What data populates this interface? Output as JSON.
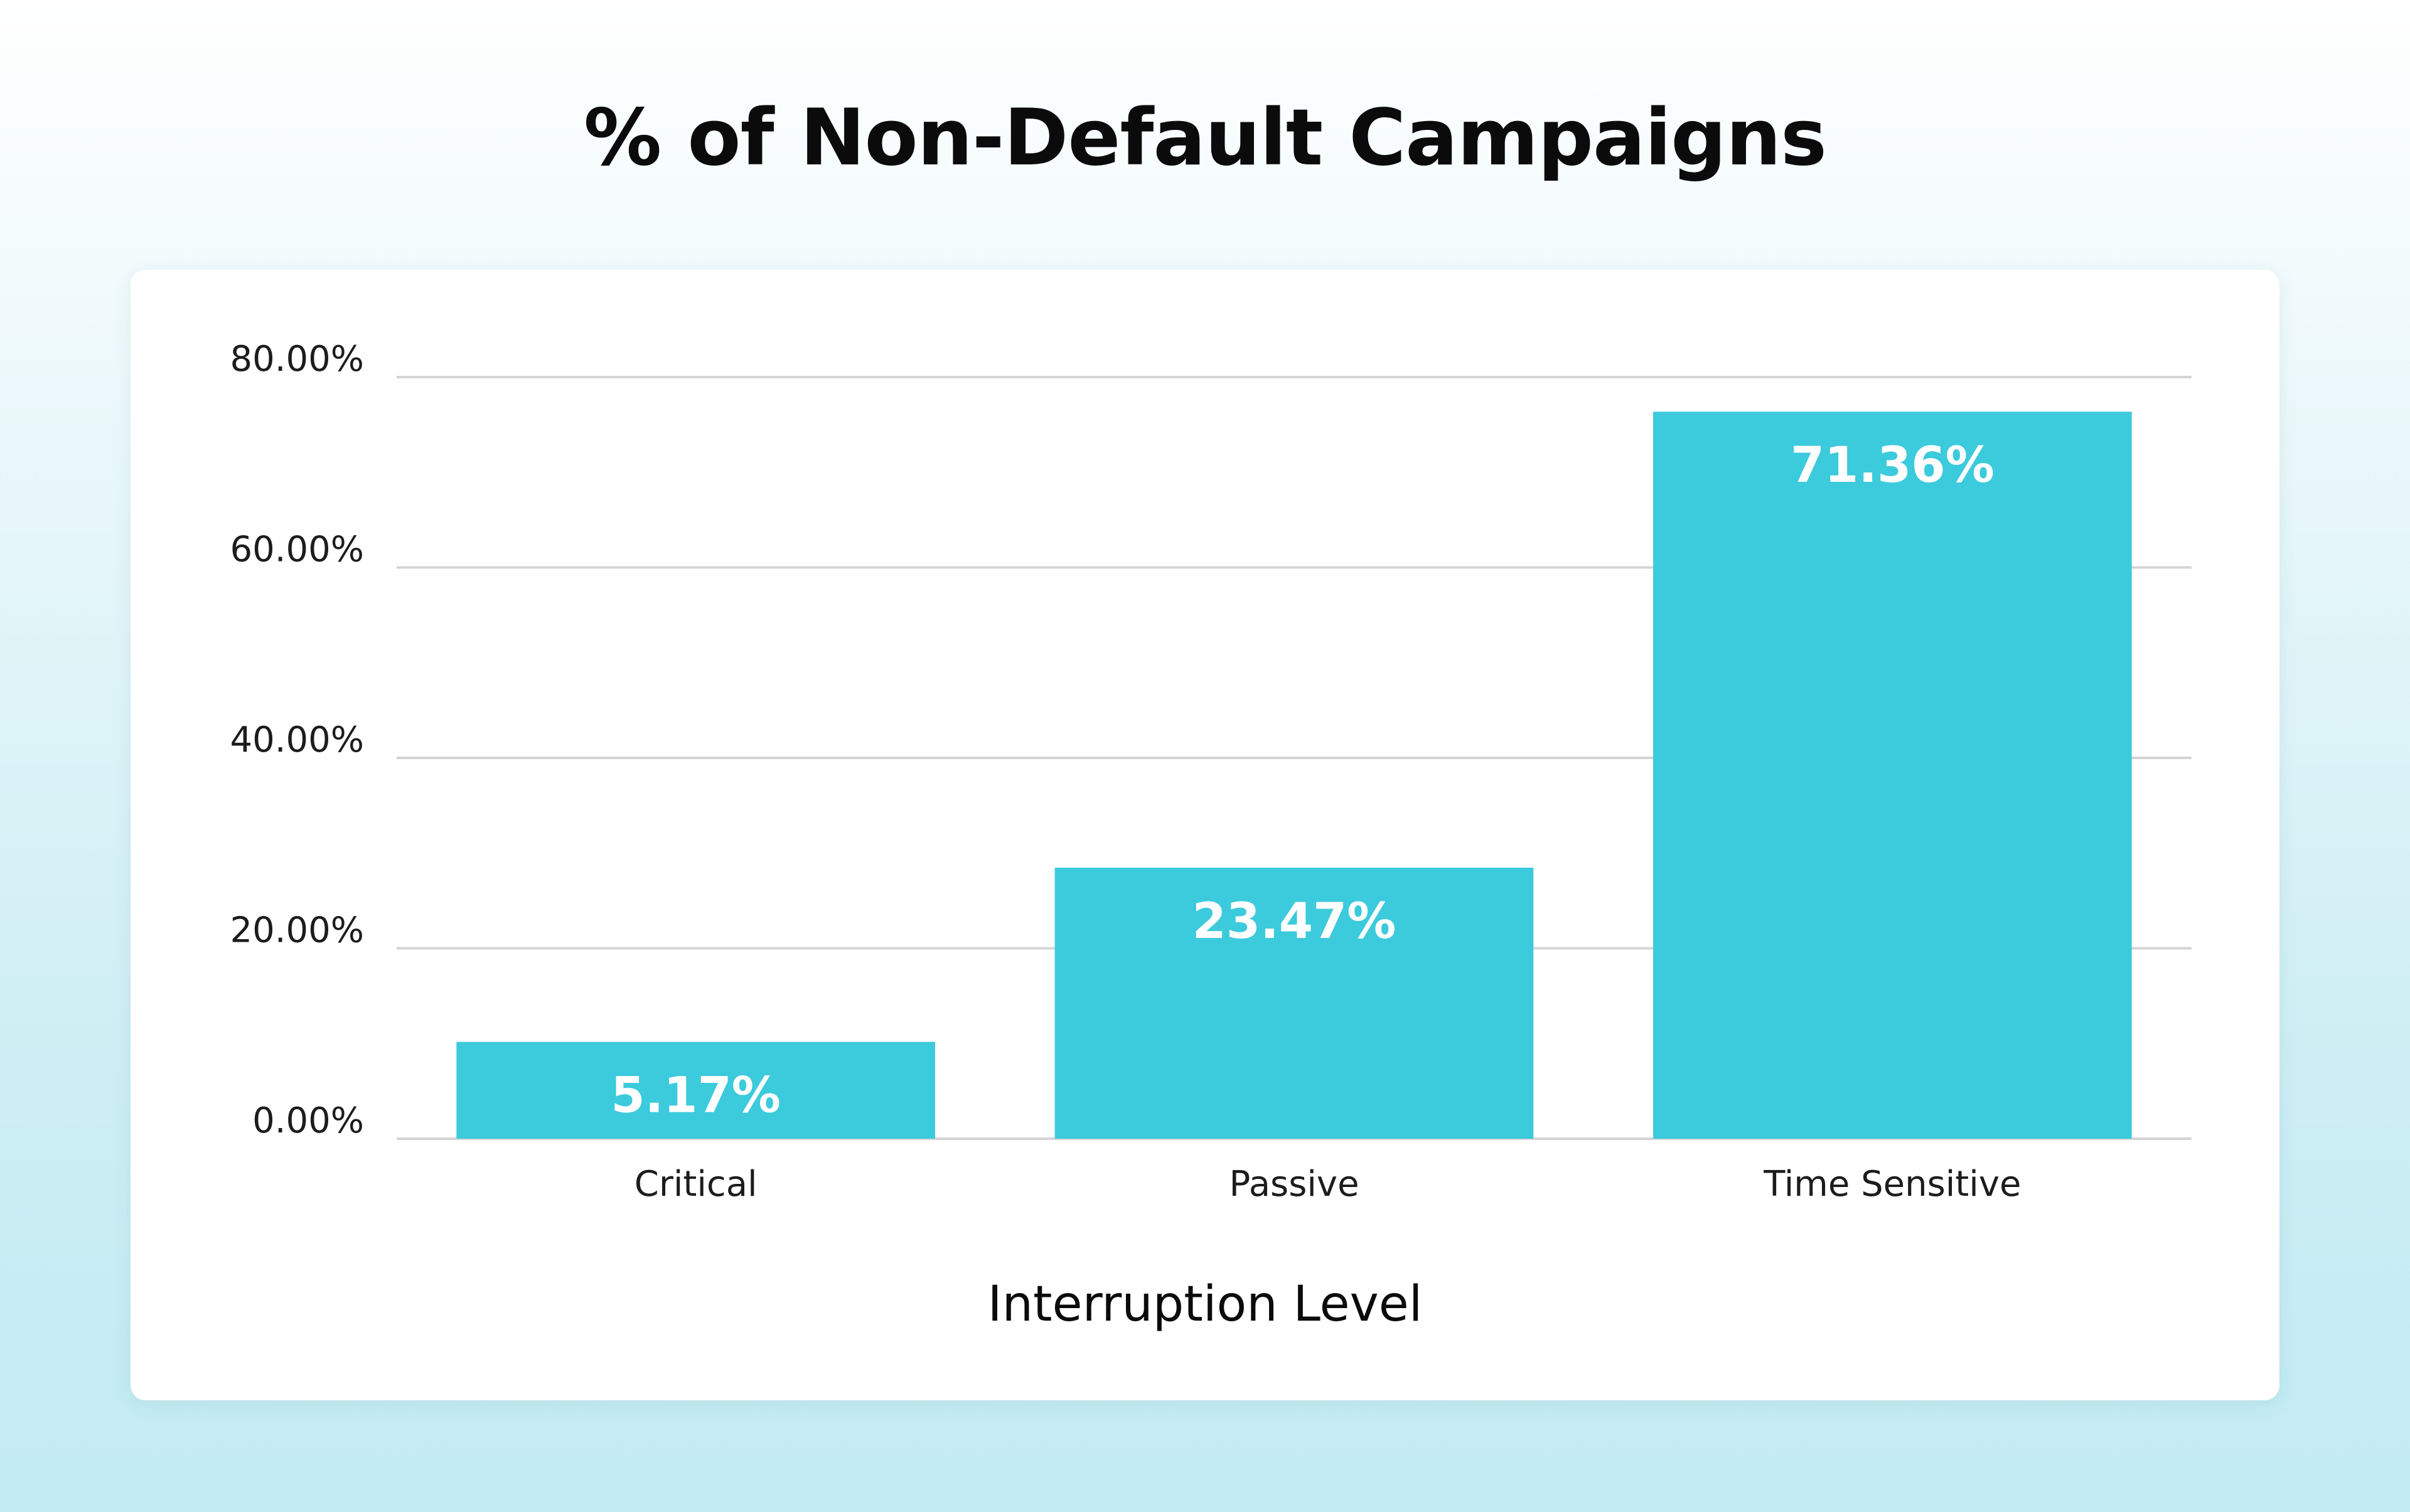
{
  "title": "% of Non-Default Campaigns",
  "chart_data": {
    "type": "bar",
    "title": "% of Non-Default Campaigns",
    "xlabel": "Interruption Level",
    "ylabel": "",
    "categories": [
      "Critical",
      "Passive",
      "Time Sensitive"
    ],
    "values": [
      5.17,
      23.47,
      71.36
    ],
    "data_labels": [
      "5.17%",
      "23.47%",
      "71.36%"
    ],
    "ylim": [
      0,
      80
    ],
    "yticks": [
      0,
      20,
      40,
      60,
      80
    ],
    "ytick_labels": [
      "0.00%",
      "20.00%",
      "40.00%",
      "60.00%",
      "80.00%"
    ],
    "grid": true,
    "legend": "none",
    "colors": {
      "bar": "#3ccadd",
      "grid": "#d4d4d4",
      "text": "#1c1c1c"
    }
  }
}
